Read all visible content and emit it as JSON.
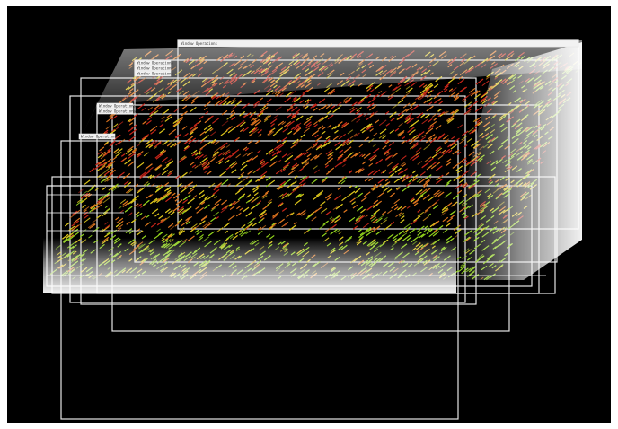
{
  "view": {
    "background_color": "#000000",
    "frame_stroke_color": "#e6e6e6",
    "panel_fill_color": "#f2f2f2",
    "shade_color": "#ffffff"
  },
  "palette": {
    "red": "#c2261a",
    "orange": "#d9731f",
    "yellow": "#d8c21c",
    "green": "#8fcf1d"
  },
  "visible_titles": [
    "Window Operations",
    "Window Operations",
    "Window Operations",
    "Window Operations",
    "Window Operations",
    "Window Operations",
    "Window Operations"
  ]
}
